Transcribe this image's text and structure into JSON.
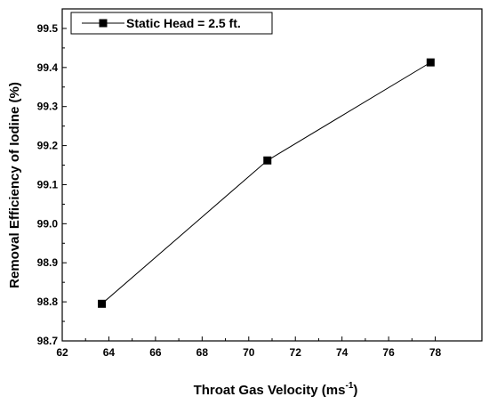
{
  "chart_data": {
    "type": "line",
    "title": "",
    "xlabel": "Throat Gas Velocity (ms",
    "xlabel_superscript": "-1",
    "xlabel_suffix": ")",
    "ylabel": "Removal Efficiency of Iodine (%)",
    "xlim": [
      62,
      80
    ],
    "ylim": [
      98.7,
      99.55
    ],
    "xticks": [
      "62",
      "64",
      "66",
      "68",
      "70",
      "72",
      "74",
      "76",
      "78"
    ],
    "yticks": [
      "98.7",
      "98.8",
      "98.9",
      "99.0",
      "99.1",
      "99.2",
      "99.3",
      "99.4",
      "99.5"
    ],
    "grid": false,
    "legend_position": "top-left",
    "series": [
      {
        "name": "Static Head = 2.5 ft.",
        "marker": "square",
        "color": "#000000",
        "x": [
          63.7,
          70.8,
          77.8
        ],
        "y": [
          98.795,
          99.162,
          99.413
        ]
      }
    ]
  }
}
